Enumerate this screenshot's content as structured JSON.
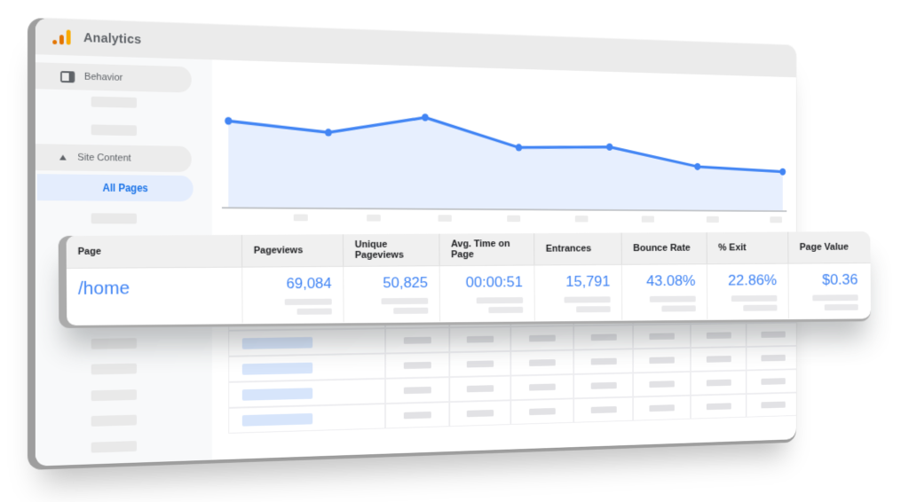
{
  "app": {
    "title": "Analytics"
  },
  "logo": {
    "dot_color": "#E37400",
    "small_bar_color": "#E37400",
    "tall_bar_color": "#F9AB00"
  },
  "sidebar": {
    "behavior_label": "Behavior",
    "site_content_label": "Site Content",
    "all_pages_label": "All Pages",
    "active_item": "All Pages",
    "active_text_color": "#1a73e8",
    "active_bg_color": "#e4edfd"
  },
  "chart_data": {
    "type": "area",
    "title": "",
    "xlabel": "",
    "ylabel": "",
    "x": [
      1,
      2,
      3,
      4,
      5,
      6,
      7
    ],
    "points_pct": [
      79,
      70,
      86,
      59,
      61,
      43,
      39
    ],
    "ylim": [
      0,
      100
    ],
    "grid": false,
    "legend": "none",
    "axis_tick_placeholders": 8,
    "line_color": "#4285f4",
    "point_color": "#4285f4",
    "fill_color": "rgba(66,133,244,0.13)",
    "note": "no numeric axis labels visible; tick labels are gray placeholder bars; values are % of plot height"
  },
  "table": {
    "columns": [
      {
        "label": "Page",
        "value": "/home"
      },
      {
        "label": "Pageviews",
        "value": "69,084"
      },
      {
        "label": "Unique Pageviews",
        "value": "50,825"
      },
      {
        "label": "Avg. Time on Page",
        "value": "00:00:51"
      },
      {
        "label": "Entrances",
        "value": "15,791"
      },
      {
        "label": "Bounce Rate",
        "value": "43.08%"
      },
      {
        "label": "% Exit",
        "value": "22.86%"
      },
      {
        "label": "Page Value",
        "value": "$0.36"
      }
    ],
    "value_color": "#4285f4",
    "header_bg": "#f0f0f0"
  },
  "background_table": {
    "placeholder_rows": 4,
    "columns": 8
  }
}
